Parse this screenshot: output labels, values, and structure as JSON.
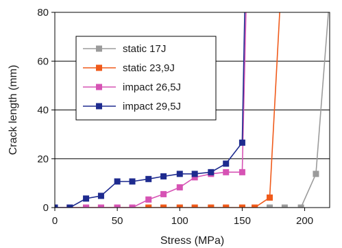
{
  "chart_data": {
    "type": "line",
    "xlabel": "Stress (MPa)",
    "ylabel": "Crack length (mm)",
    "xlim": [
      0,
      220
    ],
    "ylim": [
      0,
      80
    ],
    "x_ticks": [
      0,
      50,
      100,
      150,
      200
    ],
    "y_ticks": [
      0,
      20,
      40,
      60,
      80
    ],
    "grid": "horizontal",
    "legend_position": "upper-left inside plot",
    "series": [
      {
        "name": "static 17J",
        "color": "#9b9b9b",
        "marker": "square",
        "points": [
          [
            0,
            0
          ],
          [
            12,
            0
          ],
          [
            25,
            0
          ],
          [
            37,
            0
          ],
          [
            50,
            0
          ],
          [
            62,
            0
          ],
          [
            75,
            0
          ],
          [
            87,
            0
          ],
          [
            100,
            0
          ],
          [
            112,
            0
          ],
          [
            125,
            0
          ],
          [
            137,
            0
          ],
          [
            150,
            0
          ],
          [
            160,
            0
          ],
          [
            172,
            0
          ],
          [
            184,
            0
          ],
          [
            197,
            0
          ],
          [
            209,
            13.8
          ],
          [
            219,
            80
          ]
        ]
      },
      {
        "name": "static 23,9J",
        "color": "#f05a1a",
        "marker": "square",
        "points": [
          [
            0,
            0
          ],
          [
            12,
            0
          ],
          [
            25,
            0
          ],
          [
            37,
            0
          ],
          [
            50,
            0
          ],
          [
            62,
            0
          ],
          [
            75,
            0
          ],
          [
            87,
            0
          ],
          [
            100,
            0
          ],
          [
            112,
            0
          ],
          [
            125,
            0
          ],
          [
            137,
            0
          ],
          [
            150,
            0
          ],
          [
            160,
            0
          ],
          [
            172,
            4.1
          ],
          [
            180,
            80
          ]
        ]
      },
      {
        "name": "impact 26,5J",
        "color": "#d653b4",
        "marker": "square",
        "points": [
          [
            0,
            0
          ],
          [
            12,
            0
          ],
          [
            25,
            0
          ],
          [
            37,
            0
          ],
          [
            50,
            0
          ],
          [
            62,
            0
          ],
          [
            75,
            3.3
          ],
          [
            87,
            5.5
          ],
          [
            100,
            8.3
          ],
          [
            112,
            12.4
          ],
          [
            125,
            13.8
          ],
          [
            137,
            14.5
          ],
          [
            150,
            14.5
          ],
          [
            153,
            80
          ]
        ]
      },
      {
        "name": "impact 29,5J",
        "color": "#1e2b8f",
        "marker": "square",
        "points": [
          [
            0,
            0
          ],
          [
            12,
            0
          ],
          [
            25,
            3.7
          ],
          [
            37,
            4.8
          ],
          [
            50,
            10.7
          ],
          [
            62,
            10.7
          ],
          [
            75,
            11.7
          ],
          [
            87,
            12.8
          ],
          [
            100,
            13.8
          ],
          [
            112,
            13.8
          ],
          [
            125,
            14.5
          ],
          [
            137,
            18.0
          ],
          [
            150,
            26.6
          ],
          [
            152,
            80
          ]
        ]
      }
    ]
  }
}
